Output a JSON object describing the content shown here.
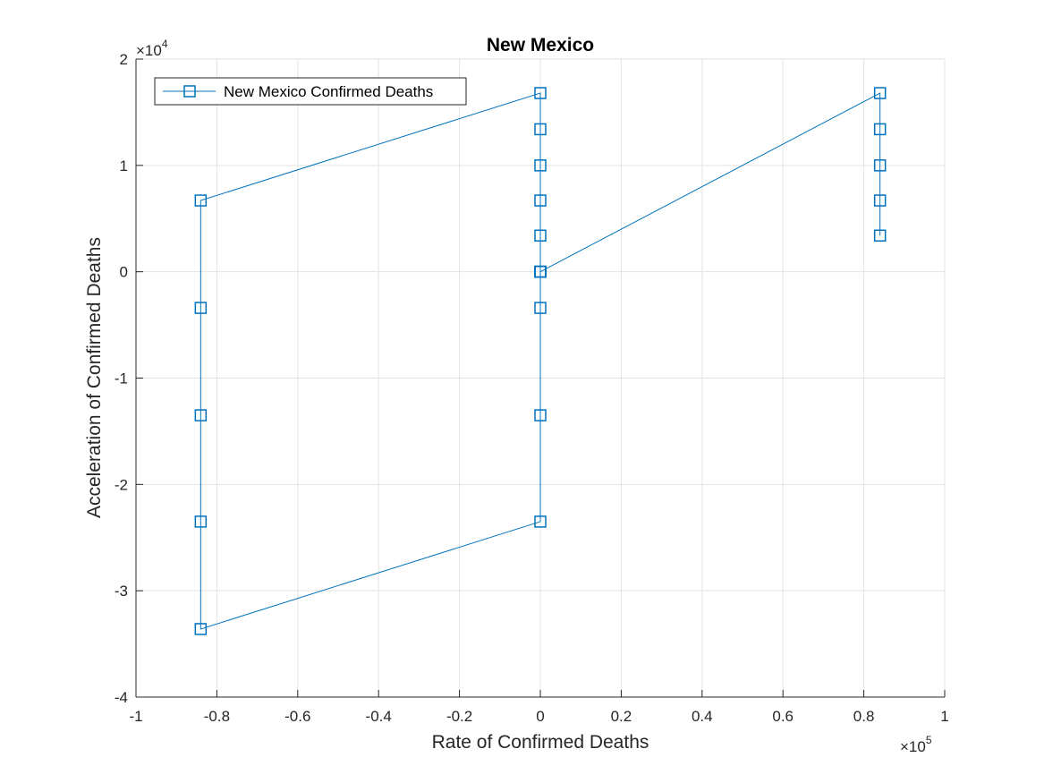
{
  "chart_data": {
    "type": "line",
    "title": "New Mexico",
    "xlabel": "Rate of Confirmed Deaths",
    "ylabel": "Acceleration of Confirmed Deaths",
    "x_exponent": {
      "base": "×10",
      "power": "5"
    },
    "y_exponent": {
      "base": "×10",
      "power": "4"
    },
    "xlim": [
      -100000,
      100000
    ],
    "ylim": [
      -40000,
      20000
    ],
    "x_ticks": [
      -100000,
      -80000,
      -60000,
      -40000,
      -20000,
      0,
      20000,
      40000,
      60000,
      80000,
      100000
    ],
    "x_tick_labels": [
      "-1",
      "-0.8",
      "-0.6",
      "-0.4",
      "-0.2",
      "0",
      "0.2",
      "0.4",
      "0.6",
      "0.8",
      "1"
    ],
    "y_ticks": [
      -40000,
      -30000,
      -20000,
      -10000,
      0,
      10000,
      20000
    ],
    "y_tick_labels": [
      "-4",
      "-3",
      "-2",
      "-1",
      "0",
      "1",
      "2"
    ],
    "grid": true,
    "legend_position": "top-left",
    "series": [
      {
        "name": "New Mexico Confirmed Deaths",
        "color": "#0072BD",
        "marker": "square",
        "x": [
          0,
          0,
          0,
          0,
          0,
          0,
          0,
          -84000,
          -84000,
          -84000,
          -84000,
          -84000,
          0,
          0,
          0,
          0,
          0,
          0,
          0,
          84000,
          84000,
          84000,
          84000,
          84000
        ],
        "y": [
          0,
          0,
          0,
          0,
          -3400,
          -13500,
          -23500,
          -33600,
          -23500,
          -13500,
          -3400,
          6700,
          16800,
          13400,
          10000,
          6700,
          3400,
          0,
          0,
          16800,
          13400,
          10000,
          6700,
          3400
        ]
      }
    ]
  }
}
